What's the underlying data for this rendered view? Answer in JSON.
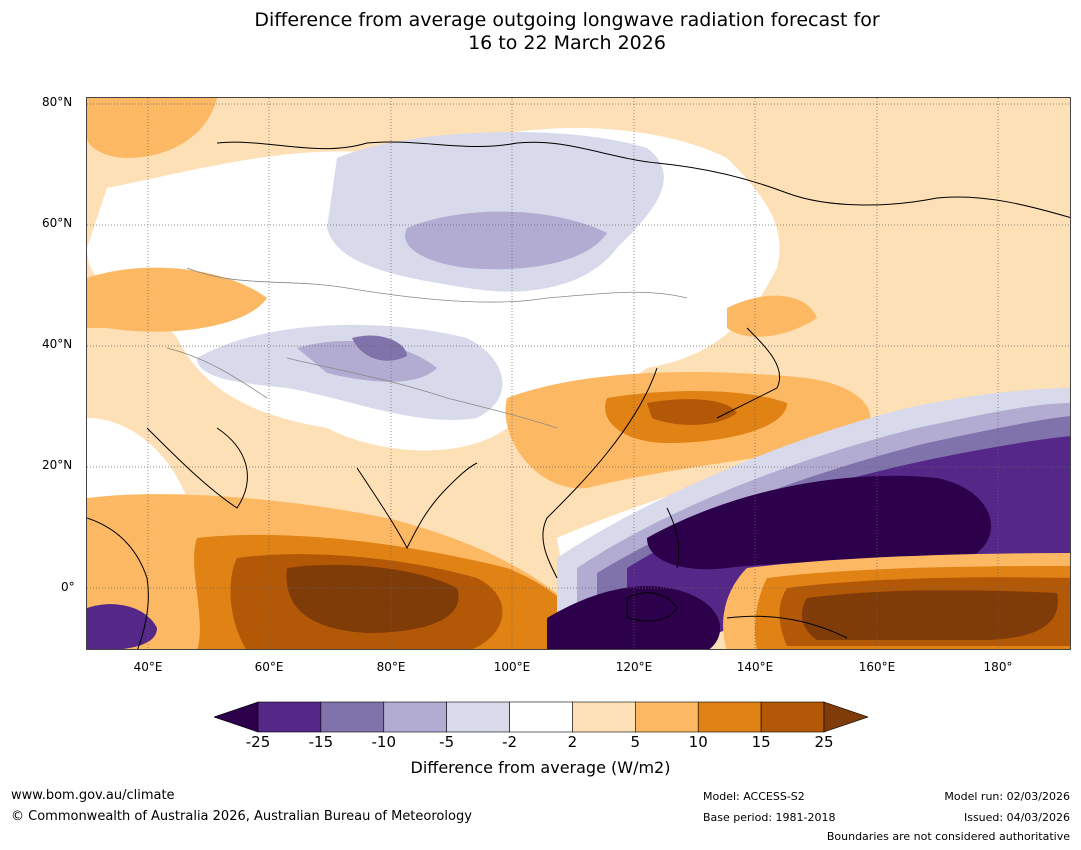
{
  "title": {
    "line1": "Difference from average outgoing longwave radiation forecast for",
    "line2": "16 to 22 March 2026"
  },
  "map": {
    "lat_labels": [
      "80°N",
      "60°N",
      "40°N",
      "20°N",
      "0°"
    ],
    "lon_labels": [
      "40°E",
      "60°E",
      "80°E",
      "100°E",
      "120°E",
      "140°E",
      "160°E",
      "180°"
    ],
    "extent": {
      "lon_min": 30,
      "lon_max": 192,
      "lat_min": -11,
      "lat_max": 81
    }
  },
  "colorbar": {
    "ticks": [
      "-25",
      "-15",
      "-10",
      "-5",
      "-2",
      "2",
      "5",
      "10",
      "15",
      "25"
    ],
    "colors": [
      "#2d004b",
      "#542788",
      "#8073ac",
      "#b2abd2",
      "#d8daeb",
      "#ffffff",
      "#fee0b6",
      "#fdb863",
      "#e08214",
      "#b35806",
      "#7f3b08"
    ],
    "label": "Difference from average (W/m2)"
  },
  "footer": {
    "website": "www.bom.gov.au/climate",
    "copyright": "© Commonwealth of Australia 2026, Australian Bureau of Meteorology",
    "model": "Model: ACCESS-S2",
    "base_period": "Base period: 1981-2018",
    "model_run": "Model run: 02/03/2026",
    "issued": "Issued: 04/03/2026",
    "disclaimer": "Boundaries are not considered authoritative"
  }
}
